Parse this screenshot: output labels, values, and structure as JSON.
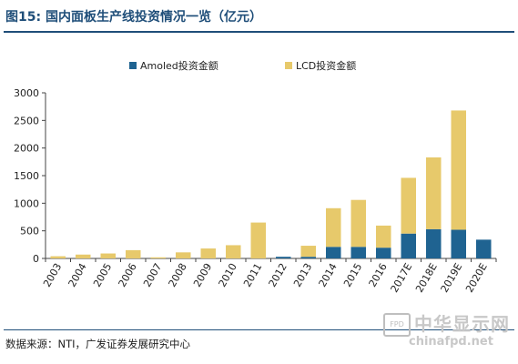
{
  "figure": {
    "title": "图15:   国内面板生产线投资情况一览（亿元）",
    "source": "数据来源：NTI，广发证券发展研究中心",
    "watermark": {
      "badge": "FPD",
      "brand": "中华显示网",
      "url": "chinafpd.net"
    }
  },
  "colors": {
    "amoled": "#1f6391",
    "lcd": "#e7c96b",
    "title": "#1f4e79",
    "grid": "#d0d0d0"
  },
  "chart_data": {
    "type": "bar",
    "stacked": true,
    "categories": [
      "2003",
      "2004",
      "2005",
      "2006",
      "2007",
      "2008",
      "2009",
      "2010",
      "2011",
      "2012",
      "2013",
      "2014",
      "2015",
      "2016",
      "2017E",
      "2018E",
      "2019E",
      "2020E"
    ],
    "series": [
      {
        "name": "Amoled投资金额",
        "values": [
          0,
          0,
          0,
          0,
          0,
          0,
          0,
          0,
          0,
          30,
          30,
          210,
          210,
          195,
          450,
          530,
          520,
          340
        ]
      },
      {
        "name": "LCD投资金额",
        "values": [
          40,
          70,
          90,
          150,
          20,
          110,
          180,
          240,
          650,
          0,
          200,
          700,
          850,
          400,
          1010,
          1300,
          2160,
          0
        ]
      }
    ],
    "ylim": [
      0,
      3000
    ],
    "yticks": [
      0,
      500,
      1000,
      1500,
      2000,
      2500,
      3000
    ],
    "legend_position": "top-center",
    "grid": false
  }
}
